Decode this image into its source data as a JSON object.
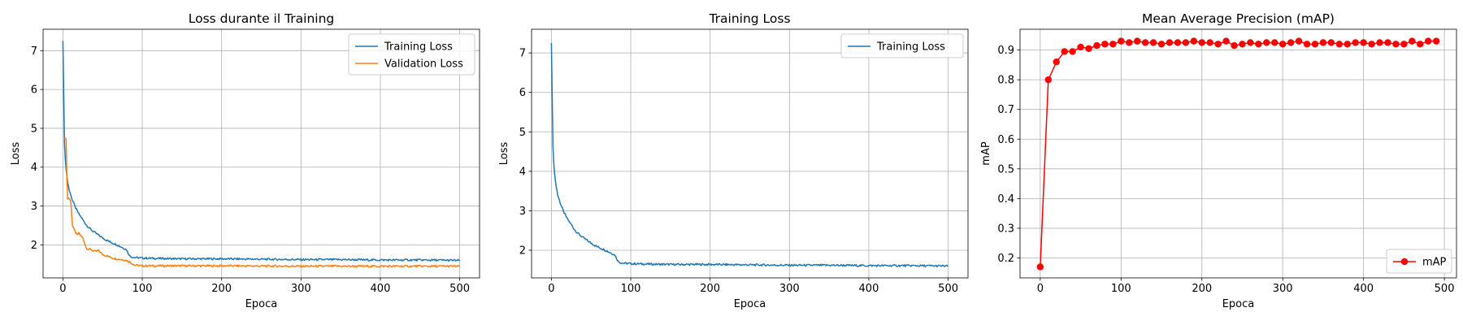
{
  "chart_data": [
    {
      "type": "line",
      "title": "Loss durante il Training",
      "xlabel": "Epoca",
      "ylabel": "Loss",
      "xlim": [
        -25,
        525
      ],
      "ylim": [
        1.15,
        7.55
      ],
      "xticks": [
        0,
        100,
        200,
        300,
        400,
        500
      ],
      "yticks": [
        2,
        3,
        4,
        5,
        6,
        7
      ],
      "grid": true,
      "legend": "top-right",
      "series": [
        {
          "name": "Training Loss",
          "color": "#1f77b4",
          "x": [
            0,
            1,
            2,
            3,
            5,
            8,
            12,
            16,
            20,
            25,
            30,
            35,
            40,
            45,
            50,
            55,
            60,
            65,
            70,
            75,
            80,
            84,
            88,
            92,
            100,
            120,
            150,
            200,
            250,
            300,
            350,
            400,
            450,
            500
          ],
          "y": [
            7.25,
            5.9,
            4.6,
            4.2,
            3.75,
            3.4,
            3.15,
            2.95,
            2.8,
            2.65,
            2.5,
            2.4,
            2.32,
            2.25,
            2.18,
            2.12,
            2.07,
            2.03,
            1.98,
            1.93,
            1.88,
            1.72,
            1.68,
            1.67,
            1.66,
            1.65,
            1.64,
            1.64,
            1.63,
            1.62,
            1.62,
            1.61,
            1.61,
            1.6
          ]
        },
        {
          "name": "Validation Loss",
          "color": "#ff7f0e",
          "x": [
            1,
            2,
            4,
            5,
            6,
            8,
            10,
            12,
            15,
            18,
            20,
            25,
            30,
            35,
            40,
            45,
            50,
            55,
            60,
            65,
            70,
            75,
            80,
            85,
            90,
            100,
            150,
            200,
            300,
            400,
            500
          ],
          "y": [
            4.75,
            4.75,
            4.75,
            3.7,
            3.2,
            3.2,
            3.1,
            2.5,
            2.35,
            2.25,
            2.3,
            2.18,
            1.9,
            1.88,
            1.83,
            1.85,
            1.75,
            1.72,
            1.68,
            1.65,
            1.63,
            1.62,
            1.6,
            1.55,
            1.48,
            1.46,
            1.46,
            1.46,
            1.45,
            1.45,
            1.45
          ]
        }
      ]
    },
    {
      "type": "line",
      "title": "Training Loss",
      "xlabel": "Epoca",
      "ylabel": "Loss",
      "xlim": [
        -25,
        525
      ],
      "ylim": [
        1.3,
        7.6
      ],
      "xticks": [
        0,
        100,
        200,
        300,
        400,
        500
      ],
      "yticks": [
        2,
        3,
        4,
        5,
        6,
        7
      ],
      "grid": true,
      "legend": "top-right",
      "series": [
        {
          "name": "Training Loss",
          "color": "#1f77b4",
          "x": [
            0,
            1,
            2,
            3,
            5,
            8,
            12,
            16,
            20,
            25,
            30,
            35,
            40,
            45,
            50,
            55,
            60,
            65,
            70,
            75,
            80,
            84,
            88,
            92,
            100,
            120,
            150,
            200,
            250,
            300,
            350,
            400,
            450,
            500
          ],
          "y": [
            7.25,
            5.9,
            4.6,
            4.2,
            3.75,
            3.4,
            3.15,
            2.95,
            2.8,
            2.65,
            2.5,
            2.4,
            2.32,
            2.25,
            2.18,
            2.12,
            2.07,
            2.03,
            1.98,
            1.93,
            1.88,
            1.72,
            1.68,
            1.67,
            1.66,
            1.65,
            1.64,
            1.64,
            1.63,
            1.62,
            1.62,
            1.61,
            1.61,
            1.6
          ]
        }
      ]
    },
    {
      "type": "line",
      "title": "Mean Average Precision (mAP)",
      "xlabel": "Epoca",
      "ylabel": "mAP",
      "xlim": [
        -25,
        515
      ],
      "ylim": [
        0.133,
        0.97
      ],
      "xticks": [
        0,
        100,
        200,
        300,
        400,
        500
      ],
      "yticks": [
        0.2,
        0.3,
        0.4,
        0.5,
        0.6,
        0.7,
        0.8,
        0.9
      ],
      "grid": true,
      "legend": "bottom-right",
      "series": [
        {
          "name": "mAP",
          "color": "#ff0000",
          "marker": "circle",
          "x": [
            0,
            10,
            20,
            30,
            40,
            50,
            60,
            70,
            80,
            90,
            100,
            110,
            120,
            130,
            140,
            150,
            160,
            170,
            180,
            190,
            200,
            210,
            220,
            230,
            240,
            250,
            260,
            270,
            280,
            290,
            300,
            310,
            320,
            330,
            340,
            350,
            360,
            370,
            380,
            390,
            400,
            410,
            420,
            430,
            440,
            450,
            460,
            470,
            480,
            490
          ],
          "y": [
            0.17,
            0.8,
            0.86,
            0.895,
            0.895,
            0.91,
            0.905,
            0.915,
            0.92,
            0.92,
            0.93,
            0.925,
            0.93,
            0.925,
            0.925,
            0.92,
            0.925,
            0.925,
            0.925,
            0.93,
            0.925,
            0.925,
            0.92,
            0.93,
            0.915,
            0.92,
            0.925,
            0.92,
            0.925,
            0.925,
            0.92,
            0.925,
            0.93,
            0.92,
            0.92,
            0.925,
            0.925,
            0.92,
            0.92,
            0.925,
            0.925,
            0.92,
            0.925,
            0.925,
            0.92,
            0.92,
            0.93,
            0.92,
            0.93,
            0.93
          ]
        }
      ]
    }
  ]
}
